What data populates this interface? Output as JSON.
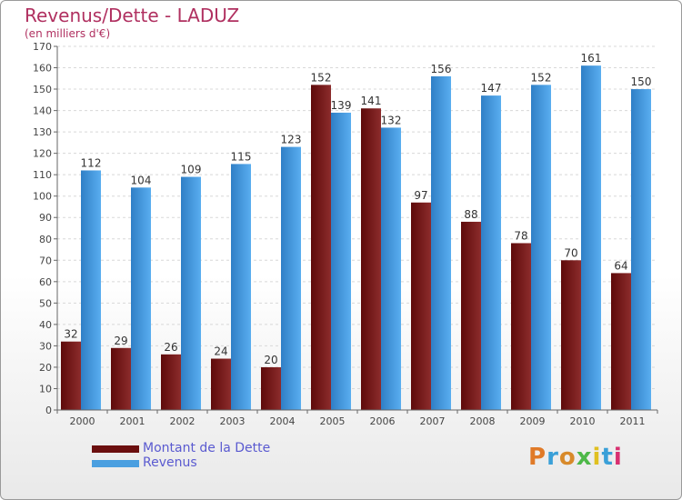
{
  "header": {
    "title": "Revenus/Dette - LADUZ",
    "subtitle": "(en milliers d'€)"
  },
  "legend": {
    "items": [
      {
        "label": "Montant de la Dette",
        "color": "#6b0f0f"
      },
      {
        "label": "Revenus",
        "color": "#4a9fe0"
      }
    ]
  },
  "brand": {
    "text": "Proxiti",
    "letter_colors": [
      "#e07a28",
      "#3aa0d8",
      "#d88a2a",
      "#4db848",
      "#e0c020",
      "#3aa0d8",
      "#d83070"
    ]
  },
  "chart_data": {
    "type": "bar",
    "categories": [
      "2000",
      "2001",
      "2002",
      "2003",
      "2004",
      "2005",
      "2006",
      "2007",
      "2008",
      "2009",
      "2010",
      "2011"
    ],
    "series": [
      {
        "name": "Montant de la Dette",
        "values": [
          32,
          29,
          26,
          24,
          20,
          152,
          141,
          97,
          88,
          78,
          70,
          64
        ],
        "color_dark": "#5e0a0a",
        "color_light": "#8c2c2c"
      },
      {
        "name": "Revenus",
        "values": [
          112,
          104,
          109,
          115,
          123,
          139,
          132,
          156,
          147,
          152,
          161,
          150
        ],
        "color_dark": "#2f7fc6",
        "color_light": "#5aaef0"
      }
    ],
    "ylim": [
      0,
      170
    ],
    "ytick_step": 10,
    "grid": true
  }
}
